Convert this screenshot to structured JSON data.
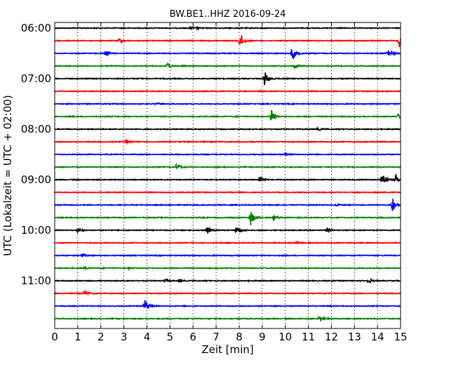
{
  "chart_data": {
    "type": "line",
    "title": "BW.BE1..HHZ 2016-09-24",
    "xlabel": "Zeit  [min]",
    "ylabel": "UTC (Lokalzeit = UTC + 02:00)",
    "xlim": [
      0,
      15
    ],
    "x_ticks": [
      0,
      1,
      2,
      3,
      4,
      5,
      6,
      7,
      8,
      9,
      10,
      11,
      12,
      13,
      14,
      15
    ],
    "grid": true,
    "colors": [
      "#000000",
      "#ff0000",
      "#0000ff",
      "#008000"
    ],
    "y_tick_labels": [
      {
        "label": "06:00",
        "trace": 0
      },
      {
        "label": "07:00",
        "trace": 4
      },
      {
        "label": "08:00",
        "trace": 8
      },
      {
        "label": "09:00",
        "trace": 12
      },
      {
        "label": "10:00",
        "trace": 16
      },
      {
        "label": "11:00",
        "trace": 20
      }
    ],
    "series": [
      {
        "start": "06:00",
        "events": [
          [
            5.9,
            0.15
          ],
          [
            6.2,
            0.1
          ]
        ]
      },
      {
        "start": "06:15",
        "events": [
          [
            2.8,
            0.35
          ],
          [
            8.05,
            1.0
          ],
          [
            14.95,
            0.8
          ]
        ]
      },
      {
        "start": "06:30",
        "events": [
          [
            2.2,
            0.45
          ],
          [
            10.3,
            1.0
          ],
          [
            14.45,
            0.6
          ]
        ]
      },
      {
        "start": "06:45",
        "events": [
          [
            4.9,
            0.5
          ],
          [
            10.4,
            0.3
          ]
        ]
      },
      {
        "start": "07:00",
        "events": [
          [
            9.1,
            1.0
          ]
        ]
      },
      {
        "start": "07:15",
        "events": []
      },
      {
        "start": "07:30",
        "events": [
          [
            4.4,
            0.1
          ]
        ]
      },
      {
        "start": "07:45",
        "events": [
          [
            9.4,
            1.0
          ],
          [
            14.9,
            0.3
          ]
        ]
      },
      {
        "start": "08:00",
        "events": [
          [
            11.4,
            0.2
          ]
        ]
      },
      {
        "start": "08:15",
        "events": [
          [
            3.1,
            0.2
          ]
        ]
      },
      {
        "start": "08:30",
        "events": [
          [
            10.0,
            0.1
          ]
        ]
      },
      {
        "start": "08:45",
        "events": [
          [
            5.3,
            0.5
          ]
        ]
      },
      {
        "start": "09:00",
        "events": [
          [
            8.9,
            0.45
          ],
          [
            14.2,
            1.0
          ],
          [
            14.8,
            0.6
          ]
        ]
      },
      {
        "start": "09:15",
        "events": []
      },
      {
        "start": "09:30",
        "events": [
          [
            12.2,
            0.1
          ],
          [
            14.65,
            0.9
          ]
        ]
      },
      {
        "start": "09:45",
        "events": [
          [
            8.5,
            1.0
          ],
          [
            9.5,
            0.4
          ]
        ]
      },
      {
        "start": "10:00",
        "events": [
          [
            1.0,
            0.3
          ],
          [
            6.6,
            0.5
          ],
          [
            7.9,
            0.7
          ],
          [
            11.8,
            0.25
          ]
        ]
      },
      {
        "start": "10:15",
        "events": [
          [
            10.5,
            0.15
          ]
        ]
      },
      {
        "start": "10:30",
        "events": [
          [
            1.2,
            0.2
          ]
        ]
      },
      {
        "start": "10:45",
        "events": [
          [
            1.3,
            0.1
          ],
          [
            3.2,
            0.1
          ]
        ]
      },
      {
        "start": "11:00",
        "events": [
          [
            4.8,
            0.2
          ],
          [
            5.4,
            0.2
          ],
          [
            13.6,
            0.3
          ]
        ]
      },
      {
        "start": "11:15",
        "events": [
          [
            1.3,
            0.35
          ]
        ]
      },
      {
        "start": "11:30",
        "events": [
          [
            3.9,
            1.0
          ]
        ]
      },
      {
        "start": "11:45",
        "events": [
          [
            11.5,
            0.45
          ]
        ]
      }
    ]
  }
}
